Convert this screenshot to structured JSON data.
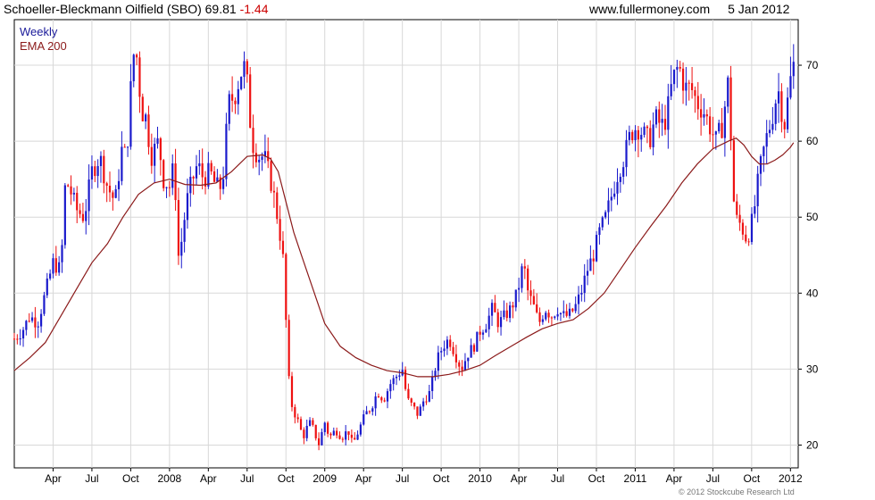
{
  "header": {
    "title": "Schoeller-Bleckmann Oilfield (SBO)",
    "price": "69.81",
    "change": "-1.44",
    "site": "www.fullermoney.com",
    "date": "5 Jan 2012"
  },
  "legend": {
    "period": "Weekly",
    "indicator": "EMA 200"
  },
  "copyright": "© 2012 Stockcube Research Ltd",
  "colors": {
    "up": "#1a1acc",
    "down": "#ee1111",
    "ema": "#8b1a1a",
    "grid": "#d8d8d8",
    "axis": "#000000"
  },
  "chart_data": {
    "type": "candlestick",
    "interval": "weekly",
    "ylim": [
      17,
      76
    ],
    "yticks": [
      20,
      30,
      40,
      50,
      60,
      70
    ],
    "x_range": [
      "2007-01",
      "2012-01"
    ],
    "xticks": [
      {
        "label": "Apr",
        "t": 2007.25
      },
      {
        "label": "Jul",
        "t": 2007.5
      },
      {
        "label": "Oct",
        "t": 2007.75
      },
      {
        "label": "2008",
        "t": 2008.0
      },
      {
        "label": "Apr",
        "t": 2008.25
      },
      {
        "label": "Jul",
        "t": 2008.5
      },
      {
        "label": "Oct",
        "t": 2008.75
      },
      {
        "label": "2009",
        "t": 2009.0
      },
      {
        "label": "Apr",
        "t": 2009.25
      },
      {
        "label": "Jul",
        "t": 2009.5
      },
      {
        "label": "Oct",
        "t": 2009.75
      },
      {
        "label": "2010",
        "t": 2010.0
      },
      {
        "label": "Apr",
        "t": 2010.25
      },
      {
        "label": "Jul",
        "t": 2010.5
      },
      {
        "label": "Oct",
        "t": 2010.75
      },
      {
        "label": "2011",
        "t": 2011.0
      },
      {
        "label": "Apr",
        "t": 2011.25
      },
      {
        "label": "Jul",
        "t": 2011.5
      },
      {
        "label": "Oct",
        "t": 2011.75
      },
      {
        "label": "2012",
        "t": 2012.0
      }
    ],
    "series": [
      {
        "name": "SBO",
        "kind": "close",
        "points": [
          [
            2007.0,
            34
          ],
          [
            2007.05,
            35
          ],
          [
            2007.1,
            37
          ],
          [
            2007.15,
            36
          ],
          [
            2007.2,
            40
          ],
          [
            2007.25,
            44
          ],
          [
            2007.3,
            43
          ],
          [
            2007.33,
            55
          ],
          [
            2007.37,
            53
          ],
          [
            2007.4,
            51
          ],
          [
            2007.45,
            50
          ],
          [
            2007.5,
            56
          ],
          [
            2007.55,
            58
          ],
          [
            2007.6,
            54
          ],
          [
            2007.65,
            52
          ],
          [
            2007.7,
            60
          ],
          [
            2007.72,
            57
          ],
          [
            2007.76,
            70
          ],
          [
            2007.78,
            73
          ],
          [
            2007.82,
            64
          ],
          [
            2007.85,
            63
          ],
          [
            2007.88,
            58
          ],
          [
            2007.93,
            60
          ],
          [
            2007.96,
            55
          ],
          [
            2008.0,
            54
          ],
          [
            2008.03,
            57
          ],
          [
            2008.06,
            44
          ],
          [
            2008.09,
            49
          ],
          [
            2008.12,
            53
          ],
          [
            2008.18,
            57
          ],
          [
            2008.22,
            55
          ],
          [
            2008.26,
            56
          ],
          [
            2008.3,
            54
          ],
          [
            2008.34,
            54
          ],
          [
            2008.38,
            65
          ],
          [
            2008.42,
            66
          ],
          [
            2008.46,
            69
          ],
          [
            2008.49,
            70
          ],
          [
            2008.53,
            60
          ],
          [
            2008.57,
            58
          ],
          [
            2008.61,
            58
          ],
          [
            2008.65,
            55
          ],
          [
            2008.68,
            52
          ],
          [
            2008.71,
            48
          ],
          [
            2008.74,
            43
          ],
          [
            2008.76,
            30
          ],
          [
            2008.79,
            25
          ],
          [
            2008.83,
            23
          ],
          [
            2008.86,
            21
          ],
          [
            2008.9,
            23
          ],
          [
            2008.93,
            22
          ],
          [
            2008.96,
            20
          ],
          [
            2009.0,
            23
          ],
          [
            2009.03,
            21
          ],
          [
            2009.07,
            22
          ],
          [
            2009.11,
            21
          ],
          [
            2009.15,
            22
          ],
          [
            2009.18,
            20
          ],
          [
            2009.22,
            22
          ],
          [
            2009.26,
            24
          ],
          [
            2009.3,
            25
          ],
          [
            2009.34,
            27
          ],
          [
            2009.38,
            26
          ],
          [
            2009.42,
            28
          ],
          [
            2009.46,
            29
          ],
          [
            2009.5,
            30
          ],
          [
            2009.53,
            26
          ],
          [
            2009.57,
            25
          ],
          [
            2009.6,
            24
          ],
          [
            2009.64,
            26
          ],
          [
            2009.68,
            27
          ],
          [
            2009.72,
            31
          ],
          [
            2009.76,
            33
          ],
          [
            2009.8,
            34
          ],
          [
            2009.84,
            32
          ],
          [
            2009.88,
            30
          ],
          [
            2009.92,
            32
          ],
          [
            2009.96,
            33
          ],
          [
            2010.0,
            35
          ],
          [
            2010.04,
            36
          ],
          [
            2010.08,
            38
          ],
          [
            2010.12,
            36
          ],
          [
            2010.16,
            37
          ],
          [
            2010.2,
            38
          ],
          [
            2010.24,
            40
          ],
          [
            2010.28,
            44
          ],
          [
            2010.31,
            40
          ],
          [
            2010.35,
            38
          ],
          [
            2010.38,
            36
          ],
          [
            2010.42,
            38
          ],
          [
            2010.46,
            37
          ],
          [
            2010.5,
            38
          ],
          [
            2010.53,
            37
          ],
          [
            2010.57,
            37
          ],
          [
            2010.61,
            38
          ],
          [
            2010.65,
            40
          ],
          [
            2010.69,
            43
          ],
          [
            2010.73,
            45
          ],
          [
            2010.77,
            48
          ],
          [
            2010.81,
            50
          ],
          [
            2010.85,
            53
          ],
          [
            2010.89,
            56
          ],
          [
            2010.93,
            58
          ],
          [
            2010.97,
            61
          ],
          [
            2011.01,
            62
          ],
          [
            2011.05,
            61
          ],
          [
            2011.09,
            60
          ],
          [
            2011.13,
            63
          ],
          [
            2011.17,
            62
          ],
          [
            2011.2,
            63
          ],
          [
            2011.24,
            68
          ],
          [
            2011.28,
            70
          ],
          [
            2011.32,
            67
          ],
          [
            2011.36,
            67
          ],
          [
            2011.4,
            65
          ],
          [
            2011.44,
            64
          ],
          [
            2011.48,
            62
          ],
          [
            2011.52,
            60
          ],
          [
            2011.56,
            62
          ],
          [
            2011.6,
            68
          ],
          [
            2011.64,
            50
          ],
          [
            2011.68,
            49
          ],
          [
            2011.72,
            47
          ],
          [
            2011.76,
            50
          ],
          [
            2011.8,
            56
          ],
          [
            2011.84,
            60
          ],
          [
            2011.88,
            63
          ],
          [
            2011.92,
            67
          ],
          [
            2011.96,
            62
          ],
          [
            2012.0,
            68
          ],
          [
            2012.02,
            70
          ]
        ]
      },
      {
        "name": "EMA 200",
        "kind": "line",
        "points": [
          [
            2007.0,
            29.8
          ],
          [
            2007.1,
            31.5
          ],
          [
            2007.2,
            33.5
          ],
          [
            2007.3,
            37
          ],
          [
            2007.4,
            40.5
          ],
          [
            2007.5,
            44
          ],
          [
            2007.6,
            46.5
          ],
          [
            2007.7,
            50
          ],
          [
            2007.8,
            53
          ],
          [
            2007.9,
            54.5
          ],
          [
            2008.0,
            55
          ],
          [
            2008.1,
            54.3
          ],
          [
            2008.2,
            54.2
          ],
          [
            2008.3,
            54.5
          ],
          [
            2008.4,
            56
          ],
          [
            2008.5,
            58
          ],
          [
            2008.6,
            58.2
          ],
          [
            2008.65,
            57.7
          ],
          [
            2008.7,
            56
          ],
          [
            2008.75,
            52
          ],
          [
            2008.8,
            48
          ],
          [
            2008.85,
            45
          ],
          [
            2008.9,
            42
          ],
          [
            2008.95,
            39
          ],
          [
            2009.0,
            36
          ],
          [
            2009.1,
            33
          ],
          [
            2009.2,
            31.5
          ],
          [
            2009.3,
            30.5
          ],
          [
            2009.4,
            29.8
          ],
          [
            2009.5,
            29.5
          ],
          [
            2009.6,
            29
          ],
          [
            2009.7,
            29
          ],
          [
            2009.8,
            29.3
          ],
          [
            2009.9,
            29.8
          ],
          [
            2010.0,
            30.5
          ],
          [
            2010.1,
            31.8
          ],
          [
            2010.2,
            33
          ],
          [
            2010.3,
            34.2
          ],
          [
            2010.4,
            35.3
          ],
          [
            2010.5,
            36
          ],
          [
            2010.6,
            36.5
          ],
          [
            2010.7,
            38
          ],
          [
            2010.8,
            40
          ],
          [
            2010.9,
            43
          ],
          [
            2011.0,
            46
          ],
          [
            2011.1,
            48.8
          ],
          [
            2011.2,
            51.5
          ],
          [
            2011.3,
            54.5
          ],
          [
            2011.4,
            57
          ],
          [
            2011.5,
            59
          ],
          [
            2011.6,
            60
          ],
          [
            2011.65,
            60.4
          ],
          [
            2011.7,
            59.5
          ],
          [
            2011.75,
            58
          ],
          [
            2011.8,
            57
          ],
          [
            2011.85,
            57
          ],
          [
            2011.9,
            57.5
          ],
          [
            2011.95,
            58.2
          ],
          [
            2012.0,
            59.2
          ],
          [
            2012.02,
            59.8
          ]
        ]
      }
    ]
  }
}
